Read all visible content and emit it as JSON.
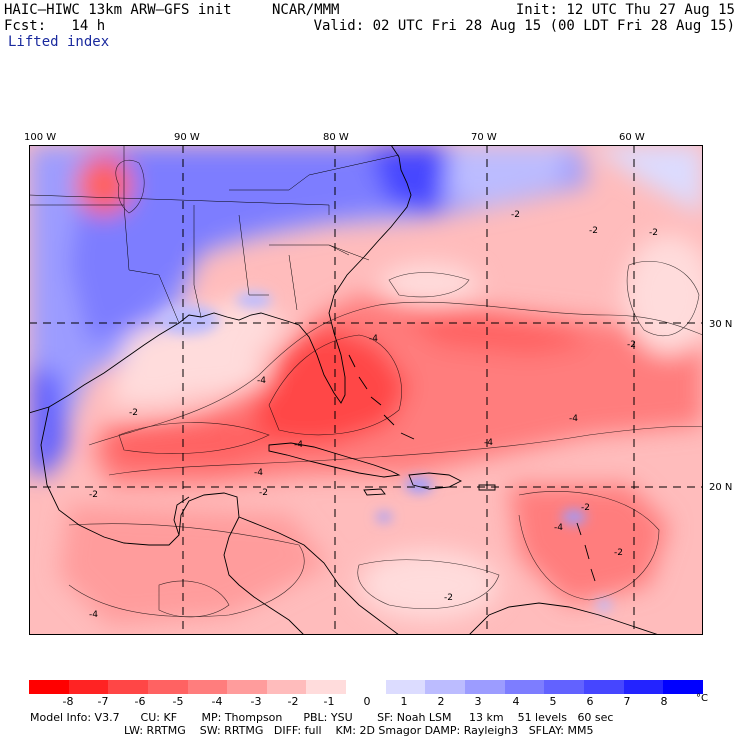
{
  "header": {
    "title": "HAIC–HIWC 13km ARW–GFS init",
    "center": "NCAR/MMM",
    "init": "Init: 12 UTC Thu 27 Aug 15",
    "fcst": "Fcst:   14 h",
    "valid": "Valid: 02 UTC Fri 28 Aug 15 (00 LDT Fri 28 Aug 15)",
    "field": "Lifted index"
  },
  "axes": {
    "lon_labels": [
      "100 W",
      "90 W",
      "80 W",
      "70 W",
      "60 W"
    ],
    "lat_labels": [
      "30 N",
      "20 N"
    ]
  },
  "colors": {
    "neg8": "#ff0000",
    "neg7": "#ff2323",
    "neg6": "#ff4646",
    "neg5": "#ff6262",
    "neg4": "#ff7d7d",
    "neg3": "#ff9c9c",
    "neg2": "#ffbcbc",
    "neg1": "#ffdcdc",
    "zero": "#ffffff",
    "pos1": "#dcdcff",
    "pos2": "#bcbcff",
    "pos3": "#9c9cff",
    "pos4": "#7d7dff",
    "pos5": "#6262ff",
    "pos6": "#4646ff",
    "pos7": "#2323ff",
    "pos8": "#0000ff"
  },
  "scale": {
    "ticks": [
      "-8",
      "-7",
      "-6",
      "-5",
      "-4",
      "-3",
      "-2",
      "-1",
      "0",
      "1",
      "2",
      "3",
      "4",
      "5",
      "6",
      "7",
      "8"
    ],
    "unit": "°C"
  },
  "contour_labels": [
    "-2",
    "-4",
    "-2",
    "-2",
    "-4",
    "-2",
    "-4",
    "-2",
    "-4",
    "-2",
    "-2",
    "-4",
    "-2",
    "-4",
    "-2",
    "-4",
    "-2",
    "-4"
  ],
  "model_info": {
    "line1": "Model Info: V3.7      CU: KF       MP: Thompson      PBL: YSU       SF: Noah LSM     13 km    51 levels   60 sec",
    "line2": "LW: RRTMG    SW: RRTMG   DIFF: full    KM: 2D Smagor DAMP: Rayleigh3   SFLAY: MM5"
  }
}
